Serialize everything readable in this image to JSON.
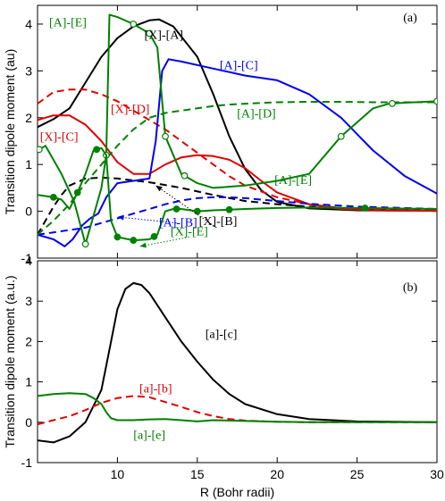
{
  "chart_data": [
    {
      "panel": "(a)",
      "type": "line",
      "xlim": [
        5,
        30
      ],
      "ylim": [
        -1,
        4.4
      ],
      "ylabel": "Transition dipole moment (au)",
      "xticks": [
        5,
        10,
        15,
        20,
        25,
        30
      ],
      "yticks": [
        -1,
        0,
        1,
        2,
        3,
        4
      ],
      "series": [
        {
          "name": "[X]-[A]",
          "color": "#000000",
          "dash": "solid",
          "marker": "none",
          "x": [
            5,
            6,
            7,
            8,
            9,
            10,
            11,
            12,
            12.6,
            13.5,
            15,
            16,
            17,
            18,
            19,
            20,
            22,
            25,
            30
          ],
          "y": [
            1.8,
            1.97,
            2.2,
            2.75,
            3.3,
            3.7,
            3.95,
            4.08,
            4.1,
            3.95,
            3.3,
            2.5,
            1.6,
            0.9,
            0.45,
            0.2,
            0.06,
            0.02,
            0.01
          ]
        },
        {
          "name": "[X]-[B]",
          "color": "#000000",
          "dash": "dashed",
          "marker": "none",
          "x": [
            5,
            5.5,
            6,
            6.5,
            7,
            8,
            9,
            10,
            12,
            14,
            16,
            18,
            20,
            22,
            25,
            30
          ],
          "y": [
            -0.5,
            -0.2,
            0.1,
            0.35,
            0.55,
            0.7,
            0.72,
            0.7,
            0.62,
            0.5,
            0.35,
            0.22,
            0.15,
            0.1,
            0.06,
            0.02
          ]
        },
        {
          "name": "[X]-[C]",
          "color": "#e00000",
          "dash": "solid",
          "marker": "none",
          "x": [
            5,
            6,
            7,
            8,
            9,
            10,
            11,
            12,
            13,
            14,
            15,
            16,
            17,
            18,
            19,
            20,
            22,
            24,
            26,
            30
          ],
          "y": [
            1.95,
            2.05,
            2.05,
            1.85,
            1.5,
            1.05,
            0.8,
            0.8,
            1.0,
            1.15,
            1.2,
            1.18,
            1.1,
            0.92,
            0.65,
            0.4,
            0.15,
            0.05,
            0.02,
            0.01
          ]
        },
        {
          "name": "[X]-[D]",
          "color": "#e00000",
          "dash": "dashed",
          "marker": "none",
          "x": [
            5,
            6,
            7,
            8,
            9,
            10,
            11,
            12,
            13,
            14,
            15,
            16,
            17,
            18,
            20,
            22,
            24,
            26,
            30
          ],
          "y": [
            2.3,
            2.55,
            2.6,
            2.6,
            2.5,
            2.35,
            2.15,
            1.95,
            1.75,
            1.5,
            1.25,
            1.0,
            0.75,
            0.55,
            0.3,
            0.15,
            0.07,
            0.03,
            0.01
          ]
        },
        {
          "name": "[A]-[B]",
          "color": "#0000ee",
          "dash": "dashed",
          "marker": "none",
          "x": [
            5,
            6,
            7,
            8,
            9,
            10,
            11,
            12,
            13,
            14,
            15,
            16,
            17,
            18,
            20,
            22,
            25,
            30
          ],
          "y": [
            -0.5,
            -0.45,
            -0.4,
            -0.35,
            -0.25,
            -0.15,
            -0.05,
            0.05,
            0.15,
            0.23,
            0.28,
            0.3,
            0.3,
            0.28,
            0.22,
            0.16,
            0.1,
            0.05
          ]
        },
        {
          "name": "[A]-[C]",
          "color": "#0000ee",
          "dash": "solid",
          "marker": "none",
          "x": [
            5,
            6,
            6.7,
            7.2,
            7.8,
            8.3,
            8.8,
            9.3,
            10,
            11,
            12,
            12.4,
            12.8,
            13.2,
            14,
            16,
            18,
            20,
            22,
            24,
            26,
            28,
            30
          ],
          "y": [
            -0.5,
            -0.6,
            -0.75,
            -0.6,
            -0.3,
            -0.15,
            -0.05,
            0.3,
            0.6,
            0.65,
            0.7,
            1.5,
            3.0,
            3.25,
            3.2,
            3.05,
            2.9,
            2.8,
            2.5,
            2.0,
            1.3,
            0.75,
            0.38
          ]
        },
        {
          "name": "[A]-[D]",
          "color": "#008000",
          "dash": "dashed",
          "marker": "none",
          "x": [
            5,
            6,
            7,
            8,
            9,
            10,
            11,
            12,
            13,
            14,
            15,
            16,
            17,
            18,
            20,
            22,
            24,
            26,
            28,
            30
          ],
          "y": [
            -0.5,
            -0.2,
            0.15,
            0.6,
            1.0,
            1.4,
            1.75,
            2.0,
            2.1,
            2.15,
            2.2,
            2.25,
            2.28,
            2.3,
            2.33,
            2.34,
            2.34,
            2.33,
            2.33,
            2.33
          ]
        },
        {
          "name": "[A]-[E]",
          "color": "#008000",
          "dash": "solid",
          "marker": "open-circle",
          "x": [
            5,
            5.5,
            6.5,
            7.3,
            8,
            8.5,
            9,
            9.3,
            9.5,
            10,
            11,
            12,
            12.5,
            13,
            14,
            15,
            16,
            18,
            20,
            22,
            24,
            26,
            27,
            28,
            30
          ],
          "y": [
            1.3,
            1.4,
            0.8,
            0.2,
            -0.7,
            -0.1,
            0.5,
            1.2,
            4.2,
            4.15,
            4.0,
            3.8,
            3.5,
            1.6,
            0.8,
            0.6,
            0.5,
            0.55,
            0.65,
            0.8,
            1.6,
            2.2,
            2.3,
            2.32,
            2.35
          ],
          "marker_x": [
            5.1,
            8,
            9.3,
            11,
            12,
            13,
            14.2,
            24,
            27.2,
            30
          ]
        },
        {
          "name": "[X]-[E]",
          "color": "#008000",
          "dash": "solid",
          "marker": "filled-circle",
          "x": [
            5,
            6,
            6.5,
            7,
            7.5,
            8,
            8.5,
            9,
            9.3,
            9.6,
            10,
            11,
            12,
            12.5,
            13,
            13.5,
            14,
            15,
            16,
            18,
            20,
            22,
            25,
            30
          ],
          "y": [
            0.35,
            0.3,
            0.25,
            0.05,
            0.4,
            0.8,
            1.3,
            1.35,
            1.2,
            -0.2,
            -0.55,
            -0.62,
            -0.6,
            -0.5,
            0.0,
            0.05,
            0.05,
            0.0,
            0.02,
            0.05,
            0.07,
            0.08,
            0.07,
            0.05
          ],
          "marker_x": [
            6,
            7.5,
            8.7,
            10,
            11,
            12.3,
            13.7,
            15,
            17,
            25.5
          ]
        }
      ],
      "annotations": [
        {
          "text": "[X]-[A]",
          "series": 0,
          "x": 12.9,
          "y": 3.78
        },
        {
          "text": "[X]-[B]",
          "series": 1,
          "x": 16.3,
          "y": -0.2
        },
        {
          "text": "[X]-[C]",
          "series": 2,
          "x": 6.35,
          "y": 1.6
        },
        {
          "text": "[X]-[D]",
          "series": 3,
          "x": 10.8,
          "y": 2.2
        },
        {
          "text": "[A]-[B]",
          "series": 4,
          "x": 13.8,
          "y": -0.23
        },
        {
          "text": "[A]-[C]",
          "series": 5,
          "x": 17.6,
          "y": 3.13
        },
        {
          "text": "[A]-[D]",
          "series": 6,
          "x": 18.7,
          "y": 2.1
        },
        {
          "text": "[A]-[E]",
          "series": 7,
          "x": 6.9,
          "y": 4.05
        },
        {
          "text": "[A]-[E]",
          "series": 7,
          "x": 21.0,
          "y": 0.68
        },
        {
          "text": "[X]-[E]",
          "series": 8,
          "x": 14.5,
          "y": -0.42
        }
      ],
      "pointers": [
        {
          "from": [
            16.2,
            -0.35
          ],
          "to": [
            12.4,
            0.55
          ],
          "color": "#000000"
        },
        {
          "from": [
            13.7,
            -0.25
          ],
          "to": [
            10.0,
            -0.12
          ],
          "color": "#0000ee"
        },
        {
          "from": [
            14.5,
            -0.55
          ],
          "to": [
            11.4,
            -0.75
          ],
          "color": "#008000"
        }
      ]
    },
    {
      "panel": "(b)",
      "type": "line",
      "xlim": [
        5,
        30
      ],
      "ylim": [
        -1,
        4
      ],
      "ylabel": "Transition dipole moment (a.u.)",
      "xlabel": "R (Bohr radii)",
      "xticks": [
        5,
        10,
        15,
        20,
        25,
        30
      ],
      "yticks": [
        -1,
        0,
        1,
        2,
        3,
        4
      ],
      "series": [
        {
          "name": "[a]-[c]",
          "color": "#000000",
          "dash": "solid",
          "x": [
            5,
            6,
            7,
            8,
            9,
            9.5,
            10,
            10.5,
            11,
            11.5,
            12,
            13,
            14,
            15,
            16,
            17,
            18,
            20,
            22,
            25,
            30
          ],
          "y": [
            -0.45,
            -0.5,
            -0.35,
            0.0,
            0.8,
            1.8,
            2.8,
            3.3,
            3.45,
            3.4,
            3.2,
            2.6,
            2.0,
            1.5,
            1.05,
            0.7,
            0.45,
            0.2,
            0.08,
            0.02,
            0.0
          ]
        },
        {
          "name": "[a]-[b]",
          "color": "#e00000",
          "dash": "dashed",
          "x": [
            5,
            6,
            7,
            8,
            9,
            10,
            11,
            12,
            13,
            14,
            15,
            16,
            17,
            18,
            20,
            22,
            25,
            30
          ],
          "y": [
            -0.05,
            0.05,
            0.15,
            0.3,
            0.48,
            0.6,
            0.65,
            0.62,
            0.5,
            0.38,
            0.25,
            0.15,
            0.08,
            0.04,
            0.01,
            0.0,
            0.0,
            0.0
          ]
        },
        {
          "name": "[a]-[e]",
          "color": "#008000",
          "dash": "solid",
          "x": [
            5,
            6,
            7,
            8,
            8.5,
            9,
            9.3,
            9.6,
            10,
            11,
            12,
            13,
            14,
            15,
            16,
            18,
            20,
            22,
            25,
            30
          ],
          "y": [
            0.65,
            0.7,
            0.72,
            0.7,
            0.6,
            0.45,
            0.25,
            0.1,
            0.05,
            0.05,
            0.07,
            0.08,
            0.05,
            0.02,
            0.05,
            0.03,
            0.01,
            0.0,
            0.0,
            0.0
          ]
        }
      ],
      "annotations": [
        {
          "text": "[a]-[c]",
          "series": 0,
          "x": 16.5,
          "y": 2.2
        },
        {
          "text": "[a]-[b]",
          "series": 1,
          "x": 12.4,
          "y": 0.85
        },
        {
          "text": "[a]-[e]",
          "series": 2,
          "x": 12.0,
          "y": -0.3
        }
      ]
    }
  ]
}
